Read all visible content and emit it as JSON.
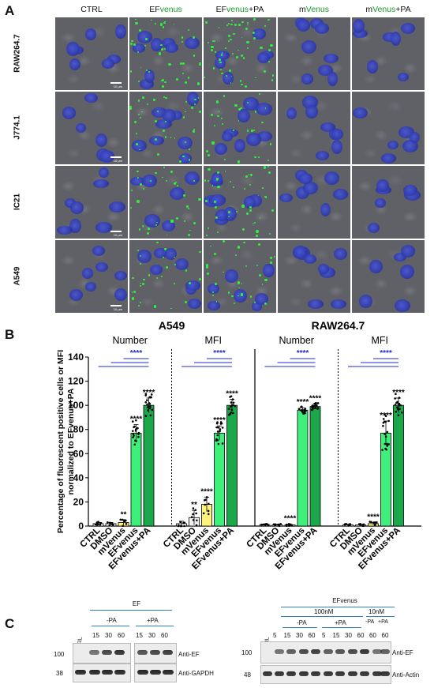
{
  "panel_a": {
    "letter": "A",
    "columns": [
      {
        "pre": "CTRL",
        "green": "",
        "post": ""
      },
      {
        "pre": "EF",
        "green": "venus",
        "post": ""
      },
      {
        "pre": "EF",
        "green": "venus",
        "post": "+PA"
      },
      {
        "pre": "m",
        "green": "Venus",
        "post": ""
      },
      {
        "pre": "m",
        "green": "Venus",
        "post": "+PA"
      }
    ],
    "rows": [
      "RAW264.7",
      "J774.1",
      "IC21",
      "A549"
    ],
    "scale_label": "10 µm",
    "colors": {
      "nucleus": "#2b36a8",
      "venus": "#2df23a",
      "background": "#5f6166"
    }
  },
  "panel_b": {
    "letter": "B",
    "ylabel_line1": "Percentage of fluorescent positive cells or MFI",
    "ylabel_line2": "normalized to EFvenus+PA",
    "group_titles": [
      "A549",
      "RAW264.7"
    ],
    "sub_titles": [
      "Number",
      "MFI",
      "Number",
      "MFI"
    ],
    "sig_blue": "****",
    "chart_data": {
      "type": "bar",
      "ylim": [
        0,
        140
      ],
      "yticks": [
        0,
        20,
        40,
        60,
        80,
        100,
        120,
        140
      ],
      "grid": false,
      "groups": [
        {
          "name": "A549 Number",
          "categories": [
            "CTRL",
            "DMSO",
            "mVenus",
            "EFvenus",
            "EFvenus+PA"
          ],
          "values": [
            2,
            2,
            3,
            77,
            100
          ],
          "errors": [
            1,
            1,
            2,
            7,
            6
          ],
          "stars": [
            "",
            "",
            "**",
            "****",
            "****"
          ]
        },
        {
          "name": "A549 MFI",
          "categories": [
            "CTRL",
            "DMSO",
            "mVenus",
            "EFvenus",
            "EFvenus+PA"
          ],
          "values": [
            2,
            7,
            18,
            77,
            100
          ],
          "errors": [
            2,
            6,
            6,
            6,
            5
          ],
          "stars": [
            "",
            "**",
            "****",
            "****",
            "****"
          ]
        },
        {
          "name": "RAW264.7 Number",
          "categories": [
            "CTRL",
            "DMSO",
            "mVenus",
            "EFvenus",
            "EFvenus+PA"
          ],
          "values": [
            1,
            1,
            1,
            96,
            99
          ],
          "errors": [
            0.5,
            0.5,
            0.5,
            2,
            2
          ],
          "stars": [
            "",
            "",
            "****",
            "****",
            "****"
          ]
        },
        {
          "name": "RAW264.7 MFI",
          "categories": [
            "CTRL",
            "DMSO",
            "mVenus",
            "EFvenus",
            "EFvenus+PA"
          ],
          "values": [
            1,
            1,
            2,
            77,
            100
          ],
          "errors": [
            0.5,
            0.5,
            1,
            10,
            6
          ],
          "stars": [
            "",
            "",
            "****",
            "****",
            "****"
          ]
        }
      ],
      "bar_colors": [
        "#ffffff",
        "#f2f2f2",
        "#fff27a",
        "#3ef07a",
        "#1aa84a"
      ]
    }
  },
  "panel_c": {
    "letter": "C",
    "left": {
      "title": "EF",
      "minus": "-PA",
      "plus": "+PA",
      "ctrl": "CTRL",
      "lanes_minus": [
        "15",
        "30",
        "60"
      ],
      "lanes_plus": [
        "15",
        "30",
        "60"
      ],
      "mw_top": "100",
      "mw_bottom": "38",
      "label_top": "Anti-EF",
      "label_bottom": "Anti-GAPDH"
    },
    "right": {
      "title": "EFvenus",
      "conc1": "100nM",
      "conc2": "10nM",
      "minus": "-PA",
      "plus": "+PA",
      "minus2": "-PA",
      "plus2": "+PA",
      "ctrl": "CTRL",
      "lanes": [
        "5",
        "15",
        "30",
        "60",
        "5",
        "15",
        "30",
        "60",
        "60",
        "60"
      ],
      "mw_top": "100",
      "mw_bottom": "48",
      "label_top": "Anti-EF",
      "label_bottom": "Anti-Actin"
    }
  }
}
